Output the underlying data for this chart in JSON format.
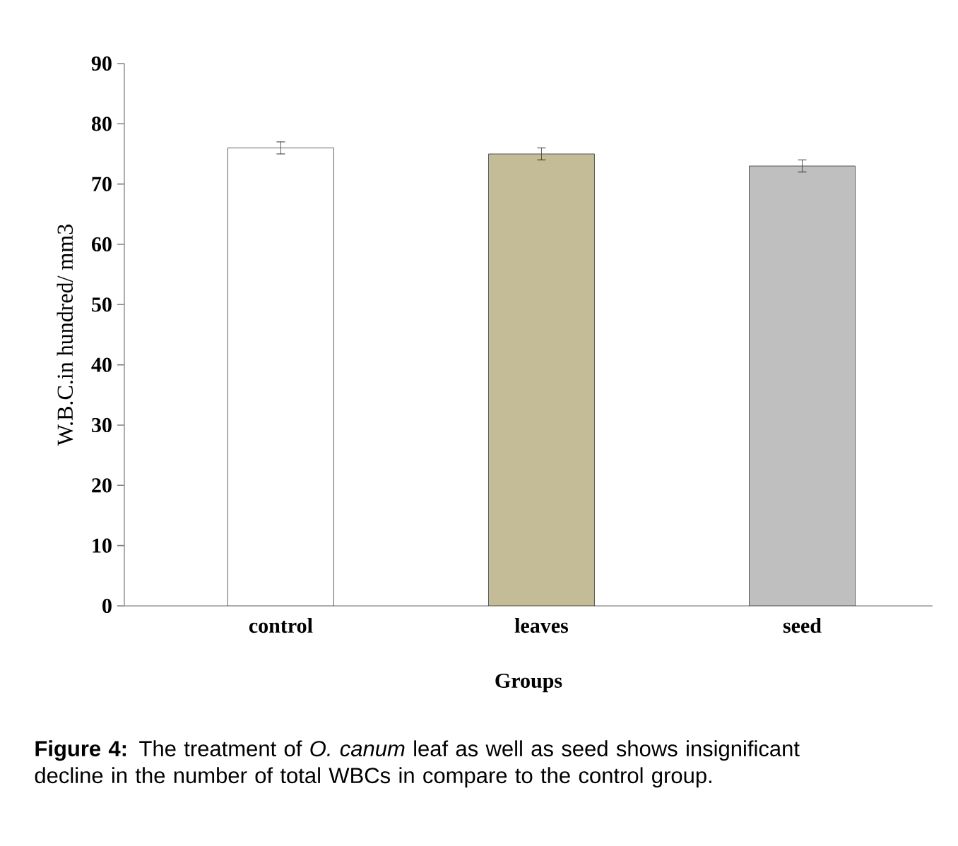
{
  "chart_data": {
    "type": "bar",
    "xlabel": "Groups",
    "ylabel": "W.B.C.in hundred/ mm3",
    "categories": [
      "control",
      "leaves",
      "seed"
    ],
    "values": [
      76,
      75,
      73
    ],
    "errors": [
      1,
      1,
      1
    ],
    "colors": [
      "#ffffff",
      "#c4bc96",
      "#bfbfbf"
    ],
    "ylim": [
      0,
      90
    ],
    "yticks": [
      0,
      10,
      20,
      30,
      40,
      50,
      60,
      70,
      80,
      90
    ],
    "annotations": [
      "**Figure 4:** The treatment of *O. canum* leaf as well as seed shows insignificant decline in the number of total WBCs in compare to the control group."
    ]
  }
}
